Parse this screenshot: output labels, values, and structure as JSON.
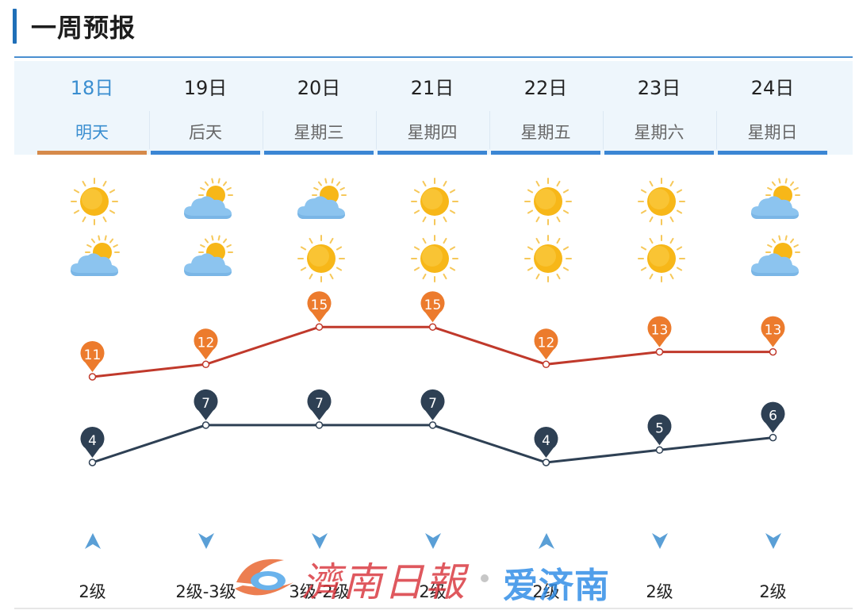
{
  "header": {
    "title": "一周预报"
  },
  "days": [
    {
      "date": "18日",
      "weekday": "明天",
      "icon_day": "sun-icon",
      "icon_night": "cloud-sun-icon",
      "high": "11",
      "low": "4",
      "wind_dir": "up",
      "wind": "2级"
    },
    {
      "date": "19日",
      "weekday": "后天",
      "icon_day": "cloud-sun-icon",
      "icon_night": "cloud-sun-icon",
      "high": "12",
      "low": "7",
      "wind_dir": "down",
      "wind": "2级-3级"
    },
    {
      "date": "20日",
      "weekday": "星期三",
      "icon_day": "cloud-sun-icon",
      "icon_night": "sun-icon",
      "high": "15",
      "low": "7",
      "wind_dir": "down",
      "wind": "3级-2级"
    },
    {
      "date": "21日",
      "weekday": "星期四",
      "icon_day": "sun-icon",
      "icon_night": "sun-icon",
      "high": "15",
      "low": "7",
      "wind_dir": "down",
      "wind": "2级"
    },
    {
      "date": "22日",
      "weekday": "星期五",
      "icon_day": "sun-icon",
      "icon_night": "sun-icon",
      "high": "12",
      "low": "4",
      "wind_dir": "up",
      "wind": "2级"
    },
    {
      "date": "23日",
      "weekday": "星期六",
      "icon_day": "sun-icon",
      "icon_night": "sun-icon",
      "high": "13",
      "low": "5",
      "wind_dir": "down",
      "wind": "2级"
    },
    {
      "date": "24日",
      "weekday": "星期日",
      "icon_day": "cloud-sun-icon",
      "icon_night": "cloud-sun-icon",
      "high": "13",
      "low": "6",
      "wind_dir": "down",
      "wind": "2级"
    }
  ],
  "watermark": {
    "left_text": "濟南日報",
    "right_text": "爱济南"
  },
  "colors": {
    "accent": "#3a8ed0",
    "active_underline": "#d68a4a",
    "underline": "#3b86d4",
    "high_line": "#c0392b",
    "high_pin": "#ec7b2d",
    "low_line": "#2e4054",
    "low_pin": "#2e4054",
    "wind_arrow": "#5a9fd6"
  }
}
